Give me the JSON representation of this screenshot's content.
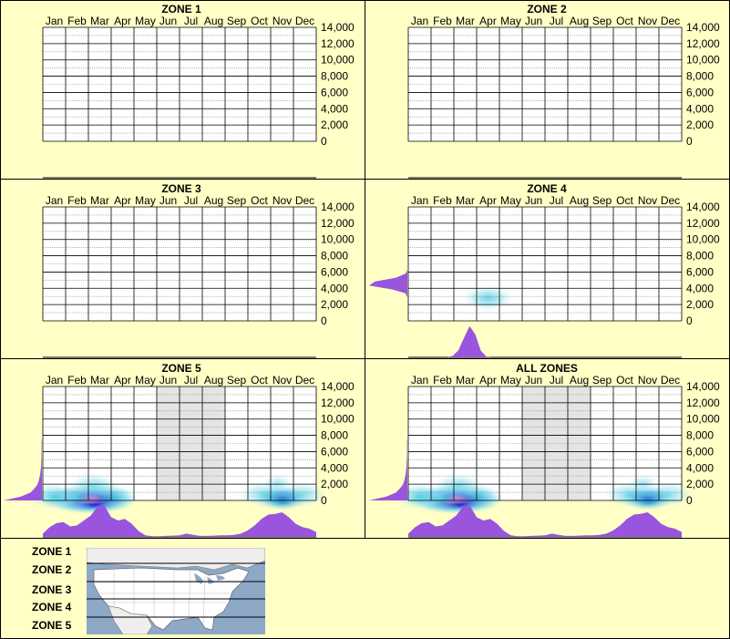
{
  "panels": [
    {
      "title": "ZONE 1",
      "density": [],
      "profile": [],
      "side": []
    },
    {
      "title": "ZONE 2",
      "density": [],
      "profile": [],
      "side": []
    },
    {
      "title": "ZONE 3",
      "density": [],
      "profile": [],
      "side": []
    },
    {
      "title": "ZONE 4",
      "density": [
        {
          "month": 3.5,
          "elev": 2800,
          "intensity": 0.45
        }
      ],
      "profile": [
        0,
        0,
        0,
        0,
        0,
        0,
        0,
        0,
        0.05,
        0.22,
        0.6,
        0.95,
        0.7,
        0.2,
        0.02,
        0,
        0,
        0,
        0,
        0,
        0,
        0,
        0,
        0,
        0,
        0,
        0,
        0,
        0,
        0,
        0,
        0,
        0,
        0,
        0,
        0,
        0,
        0,
        0,
        0,
        0,
        0,
        0,
        0,
        0,
        0,
        0,
        0,
        0,
        0
      ],
      "side": [
        0,
        0,
        0,
        0,
        0,
        0,
        0,
        0.05,
        0.4,
        1,
        0.85,
        0.3,
        0.05,
        0,
        0,
        0,
        0,
        0,
        0,
        0,
        0,
        0,
        0,
        0,
        0,
        0,
        0,
        0,
        0,
        0
      ]
    },
    {
      "title": "ZONE 5",
      "density": [
        {
          "month": 2.1,
          "elev": 100,
          "intensity": 1.0
        },
        {
          "month": 1.4,
          "elev": 300,
          "intensity": 0.7
        },
        {
          "month": 0.5,
          "elev": 500,
          "intensity": 0.55
        },
        {
          "month": 3.0,
          "elev": 500,
          "intensity": 0.5
        },
        {
          "month": 2.2,
          "elev": 1800,
          "intensity": 0.3
        },
        {
          "month": 10.5,
          "elev": 300,
          "intensity": 0.85
        },
        {
          "month": 9.7,
          "elev": 700,
          "intensity": 0.35
        },
        {
          "month": 11.4,
          "elev": 700,
          "intensity": 0.3
        },
        {
          "month": 10.3,
          "elev": 2100,
          "intensity": 0.15
        }
      ],
      "profile": [
        0.1,
        0.3,
        0.42,
        0.45,
        0.32,
        0.35,
        0.5,
        0.65,
        0.92,
        0.95,
        0.6,
        0.5,
        0.55,
        0.4,
        0.18,
        0.05,
        0.02,
        0.02,
        0.03,
        0.04,
        0.05,
        0.1,
        0.06,
        0.03,
        0.03,
        0.04,
        0.05,
        0.05,
        0.06,
        0.1,
        0.2,
        0.35,
        0.55,
        0.68,
        0.7,
        0.75,
        0.6,
        0.4,
        0.3,
        0.25,
        0.15
      ],
      "side": [
        1,
        0.55,
        0.3,
        0.2,
        0.12,
        0.08,
        0.06,
        0.04,
        0.03,
        0.02,
        0.02,
        0.01,
        0.01,
        0.01,
        0.01,
        0.01,
        0,
        0,
        0,
        0,
        0,
        0,
        0,
        0,
        0,
        0,
        0,
        0,
        0,
        0
      ],
      "gray_months": [
        5,
        8
      ]
    },
    {
      "title": "ALL ZONES",
      "density": [
        {
          "month": 2.1,
          "elev": 100,
          "intensity": 1.0
        },
        {
          "month": 1.4,
          "elev": 300,
          "intensity": 0.7
        },
        {
          "month": 0.5,
          "elev": 500,
          "intensity": 0.55
        },
        {
          "month": 3.0,
          "elev": 500,
          "intensity": 0.5
        },
        {
          "month": 2.2,
          "elev": 1800,
          "intensity": 0.3
        },
        {
          "month": 10.5,
          "elev": 300,
          "intensity": 0.85
        },
        {
          "month": 9.7,
          "elev": 700,
          "intensity": 0.35
        },
        {
          "month": 11.4,
          "elev": 700,
          "intensity": 0.3
        },
        {
          "month": 10.3,
          "elev": 2100,
          "intensity": 0.15
        }
      ],
      "profile": [
        0.1,
        0.3,
        0.42,
        0.45,
        0.32,
        0.35,
        0.5,
        0.65,
        0.92,
        0.95,
        0.6,
        0.5,
        0.55,
        0.4,
        0.18,
        0.05,
        0.02,
        0.02,
        0.03,
        0.04,
        0.05,
        0.1,
        0.06,
        0.03,
        0.03,
        0.04,
        0.05,
        0.05,
        0.06,
        0.1,
        0.2,
        0.35,
        0.55,
        0.68,
        0.7,
        0.75,
        0.6,
        0.4,
        0.3,
        0.25,
        0.15
      ],
      "side": [
        1,
        0.55,
        0.3,
        0.2,
        0.12,
        0.08,
        0.06,
        0.04,
        0.03,
        0.02,
        0.02,
        0.01,
        0.01,
        0.01,
        0.01,
        0.01,
        0,
        0,
        0,
        0,
        0,
        0,
        0,
        0,
        0,
        0,
        0,
        0,
        0,
        0
      ],
      "gray_months": [
        5,
        8
      ]
    }
  ],
  "chart_data": {
    "type": "heatmap",
    "x_categories": [
      "Jan",
      "Feb",
      "Mar",
      "Apr",
      "May",
      "Jun",
      "Jul",
      "Aug",
      "Sep",
      "Oct",
      "Nov",
      "Dec"
    ],
    "y_ticks": [
      "14,000",
      "12,000",
      "10,000",
      "8,000",
      "6,000",
      "4,000",
      "2,000",
      "0"
    ],
    "ylim": [
      0,
      14000
    ],
    "grid": true,
    "colors": {
      "background": "#ffffc6",
      "profile_fill": "#9955dd",
      "grid_minor": "#888888",
      "gray_band": "#e4e4e4"
    }
  },
  "legend": {
    "zones": [
      "ZONE 1",
      "ZONE 2",
      "ZONE 3",
      "ZONE 4",
      "ZONE 5"
    ]
  }
}
